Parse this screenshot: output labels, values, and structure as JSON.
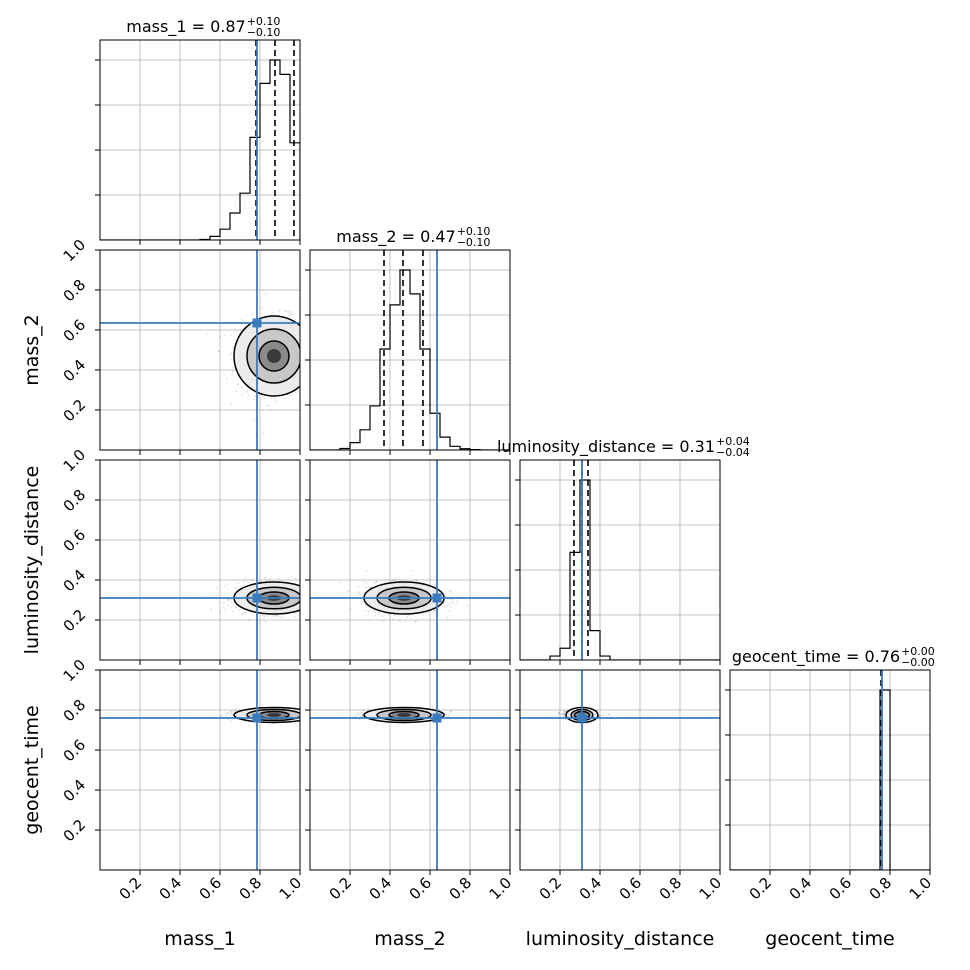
{
  "chart_data": {
    "type": "corner",
    "parameters": [
      "mass_1",
      "mass_2",
      "luminosity_distance",
      "geocent_time"
    ],
    "axis_range": [
      0,
      1
    ],
    "tick_values": [
      0.2,
      0.4,
      0.6,
      0.8,
      1.0
    ],
    "tick_labels": [
      "0.2",
      "0.4",
      "0.6",
      "0.8",
      "1.0"
    ],
    "grid": true,
    "colors": {
      "hist": "#000000",
      "truth": "#3a7bbf",
      "grid": "#b0b0b0",
      "quantile": "#000000"
    },
    "titles": [
      {
        "param": "mass_1",
        "label": "mass_1 = 0.87",
        "plus": "+0.10",
        "minus": "−0.10"
      },
      {
        "param": "mass_2",
        "label": "mass_2 = 0.47",
        "plus": "+0.10",
        "minus": "−0.10"
      },
      {
        "param": "luminosity_distance",
        "label": "luminosity_distance = 0.31",
        "plus": "+0.04",
        "minus": "−0.04"
      },
      {
        "param": "geocent_time",
        "label": "geocent_time = 0.76",
        "plus": "+0.00",
        "minus": "−0.00"
      }
    ],
    "truths": {
      "mass_1": 0.785,
      "mass_2": 0.635,
      "luminosity_distance": 0.31,
      "geocent_time": 0.76
    },
    "posterior_centers": {
      "mass_1": 0.87,
      "mass_2": 0.47,
      "luminosity_distance": 0.31,
      "geocent_time": 0.775
    },
    "posterior_widths": {
      "mass_1": 0.1,
      "mass_2": 0.1,
      "luminosity_distance": 0.04,
      "geocent_time": 0.012
    },
    "quantiles": {
      "mass_1": [
        0.78,
        0.875,
        0.97
      ],
      "mass_2": [
        0.37,
        0.465,
        0.565
      ],
      "luminosity_distance": [
        0.27,
        0.31,
        0.34
      ],
      "geocent_time": [
        0.755,
        0.757,
        0.76
      ]
    },
    "histograms": {
      "mass_1": {
        "bin_edges": [
          0.5,
          0.55,
          0.6,
          0.65,
          0.7,
          0.75,
          0.8,
          0.85,
          0.9,
          0.95,
          1.0
        ],
        "counts": [
          0.003,
          0.02,
          0.06,
          0.15,
          0.26,
          0.57,
          0.87,
          1.0,
          0.92,
          0.54
        ]
      },
      "mass_2": {
        "bin_edges": [
          0.15,
          0.2,
          0.25,
          0.3,
          0.35,
          0.4,
          0.45,
          0.5,
          0.55,
          0.6,
          0.65,
          0.7,
          0.75,
          0.8,
          0.85
        ],
        "counts": [
          0.008,
          0.04,
          0.11,
          0.24,
          0.55,
          0.79,
          0.98,
          0.85,
          0.55,
          0.2,
          0.07,
          0.02,
          0.007,
          0.002
        ]
      },
      "luminosity_distance": {
        "bin_edges": [
          0.15,
          0.2,
          0.25,
          0.3,
          0.35,
          0.4,
          0.45
        ],
        "counts": [
          0.02,
          0.06,
          0.55,
          0.92,
          0.15,
          0.02
        ]
      },
      "geocent_time": {
        "bin_edges": [
          0.7,
          0.75,
          0.8
        ],
        "counts": [
          0.0,
          1.0
        ]
      }
    }
  }
}
